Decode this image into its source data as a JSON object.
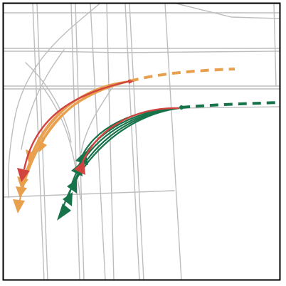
{
  "scene": {
    "type": "trajectory-prediction-map",
    "background_color": "#ffffff",
    "border_color": "#000000",
    "road_color": "#bdbdbd",
    "agents": [
      {
        "name": "agent-orange",
        "history_style": "dashed",
        "history_color": "#e8a04f",
        "prediction_color": "#e8a04f",
        "ground_truth_color": "#d2423f",
        "prediction_count": 5
      },
      {
        "name": "agent-green",
        "history_style": "dashed",
        "history_color": "#17734a",
        "prediction_color": "#17734a",
        "ground_truth_color": "#d2423f",
        "prediction_count": 5
      }
    ]
  }
}
